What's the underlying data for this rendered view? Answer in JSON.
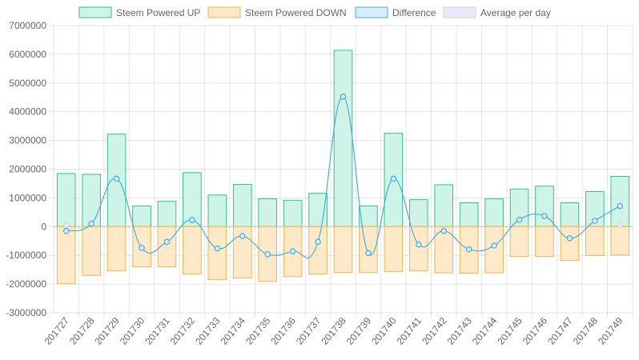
{
  "chart_data": {
    "type": "bar",
    "categories": [
      "201727",
      "201728",
      "201729",
      "201730",
      "201731",
      "201732",
      "201733",
      "201734",
      "201735",
      "201736",
      "201737",
      "201738",
      "201739",
      "201740",
      "201741",
      "201742",
      "201743",
      "201744",
      "201745",
      "201746",
      "201747",
      "201748",
      "201749"
    ],
    "series": [
      {
        "name": "Steem Powered UP",
        "type": "bar",
        "fill": "#cdf4e6",
        "stroke": "#2fc48f",
        "values": [
          1850000,
          1820000,
          3220000,
          720000,
          880000,
          1880000,
          1100000,
          1470000,
          970000,
          920000,
          1160000,
          6140000,
          720000,
          3250000,
          940000,
          1460000,
          830000,
          970000,
          1310000,
          1410000,
          830000,
          1220000,
          1750000
        ]
      },
      {
        "name": "Steem Powered DOWN",
        "type": "bar",
        "fill": "#ffe9c8",
        "stroke": "#f5b547",
        "values": [
          -1990000,
          -1700000,
          -1540000,
          -1400000,
          -1400000,
          -1650000,
          -1850000,
          -1790000,
          -1910000,
          -1740000,
          -1650000,
          -1600000,
          -1600000,
          -1570000,
          -1540000,
          -1610000,
          -1620000,
          -1610000,
          -1040000,
          -1040000,
          -1180000,
          -1010000,
          -990000
        ]
      },
      {
        "name": "Difference",
        "type": "line",
        "fill": "#d6ecf8",
        "stroke": "#4aaed8",
        "values": [
          -150000,
          100000,
          1670000,
          -740000,
          -530000,
          230000,
          -760000,
          -330000,
          -960000,
          -860000,
          -530000,
          4530000,
          -920000,
          1670000,
          -620000,
          -150000,
          -790000,
          -660000,
          240000,
          370000,
          -400000,
          200000,
          720000
        ]
      },
      {
        "name": "Average per day",
        "type": "point",
        "fill": "#e8eaf8",
        "stroke": "#cfd3ef",
        "values": [
          60000,
          null,
          null,
          null,
          null,
          null,
          null,
          null,
          null,
          null,
          null,
          null,
          null,
          null,
          null,
          null,
          null,
          null,
          null,
          null,
          null,
          null,
          60000
        ]
      }
    ],
    "xlabel": "",
    "ylabel": "",
    "ylim": [
      -3000000,
      7000000
    ],
    "yticks": [
      "7000000",
      "6000000",
      "5000000",
      "4000000",
      "3000000",
      "2000000",
      "1000000",
      "0",
      "-1000000",
      "-2000000",
      "-3000000"
    ],
    "grid": true,
    "legend_position": "top"
  }
}
